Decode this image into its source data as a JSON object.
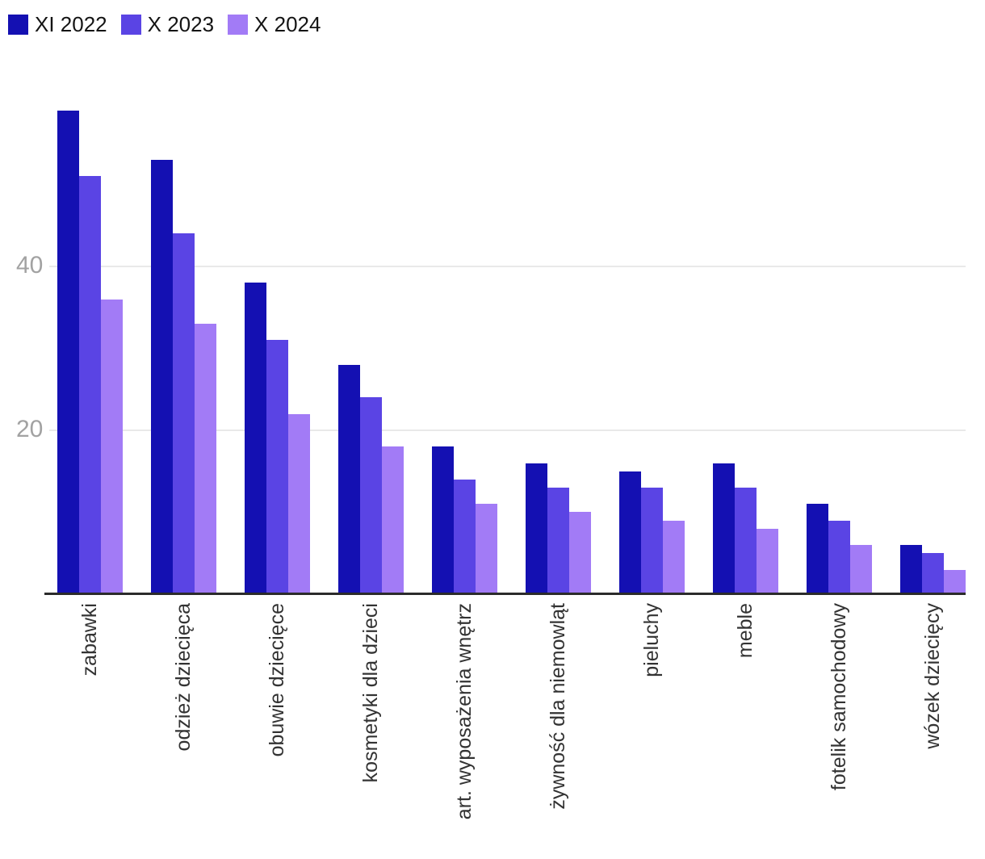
{
  "chart_data": {
    "type": "bar",
    "title": "",
    "xlabel": "",
    "ylabel": "",
    "categories": [
      "zabawki",
      "odzież dziecięca",
      "obuwie dziecięce",
      "kosmetyki dla dzieci",
      "art. wyposażenia wnętrz",
      "żywność dla niemowląt",
      "pieluchy",
      "meble",
      "fotelik samochodowy",
      "wózek dziecięcy"
    ],
    "series": [
      {
        "name": "XI 2022",
        "color": "#1410b2",
        "values": [
          59,
          53,
          38,
          28,
          18,
          16,
          15,
          16,
          11,
          6
        ]
      },
      {
        "name": "X 2023",
        "color": "#5a44e4",
        "values": [
          51,
          44,
          31,
          24,
          14,
          13,
          13,
          13,
          9,
          5
        ]
      },
      {
        "name": "X 2024",
        "color": "#a27bf6",
        "values": [
          36,
          33,
          22,
          18,
          11,
          10,
          9,
          8,
          6,
          3
        ]
      }
    ],
    "yticks": [
      20,
      40
    ],
    "ylim": [
      0,
      62.7
    ],
    "grid": true,
    "legend_position": "top-left"
  },
  "style": {
    "background": "#ffffff",
    "grid_color": "#e9e9e9",
    "axis_color": "#2b2b2b",
    "ytick_color": "#a2a2a2",
    "xtick_color": "#333333",
    "legend_text_color": "#141414"
  }
}
